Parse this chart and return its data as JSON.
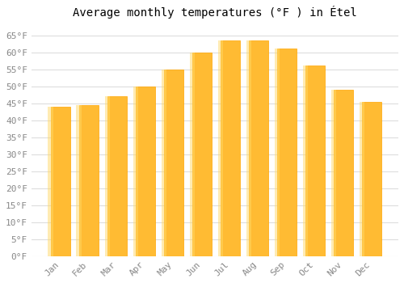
{
  "title": "Average monthly temperatures (°F ) in Étel",
  "months": [
    "Jan",
    "Feb",
    "Mar",
    "Apr",
    "May",
    "Jun",
    "Jul",
    "Aug",
    "Sep",
    "Oct",
    "Nov",
    "Dec"
  ],
  "values": [
    44,
    44.5,
    47,
    50,
    55,
    60,
    63.5,
    63.5,
    61,
    56,
    49,
    45.5
  ],
  "bar_color_face": "#FFBB33",
  "bar_color_edge": "#FFA500",
  "background_color": "#FFFFFF",
  "plot_bg_color": "#FFFFFF",
  "grid_color": "#DDDDDD",
  "ylim": [
    0,
    68
  ],
  "yticks": [
    0,
    5,
    10,
    15,
    20,
    25,
    30,
    35,
    40,
    45,
    50,
    55,
    60,
    65
  ],
  "title_fontsize": 10,
  "tick_fontsize": 8,
  "x_tick_color": "#888888",
  "y_tick_color": "#888888"
}
